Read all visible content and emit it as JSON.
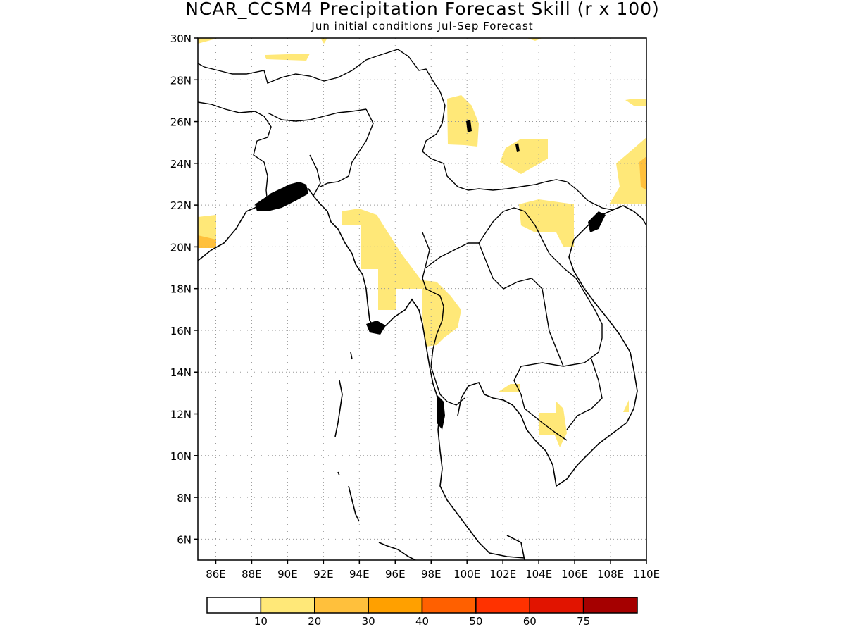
{
  "map": {
    "title": "NCAR_CCSM4 Precipitation Forecast Skill (r x 100)",
    "subtitle": "Jun initial conditions  Jul-Sep Forecast",
    "lon_range": [
      85,
      110
    ],
    "lat_range": [
      5,
      30
    ],
    "lon_ticks": [
      "86E",
      "88E",
      "90E",
      "92E",
      "94E",
      "96E",
      "98E",
      "100E",
      "102E",
      "104E",
      "106E",
      "108E",
      "110E"
    ],
    "lat_ticks": [
      "6N",
      "8N",
      "10N",
      "12N",
      "14N",
      "16N",
      "18N",
      "20N",
      "22N",
      "24N",
      "26N",
      "28N",
      "30N"
    ],
    "gridlines": "dotted"
  },
  "legend": {
    "labels": [
      "10",
      "20",
      "30",
      "40",
      "50",
      "60",
      "75"
    ],
    "colors": [
      "#ffffff",
      "#ffe878",
      "#ffc03c",
      "#ffa000",
      "#ff6000",
      "#ff3200",
      "#e11400",
      "#a50000"
    ]
  },
  "shading_color": "#ffe878",
  "shading_color_high": "#ffc03c"
}
